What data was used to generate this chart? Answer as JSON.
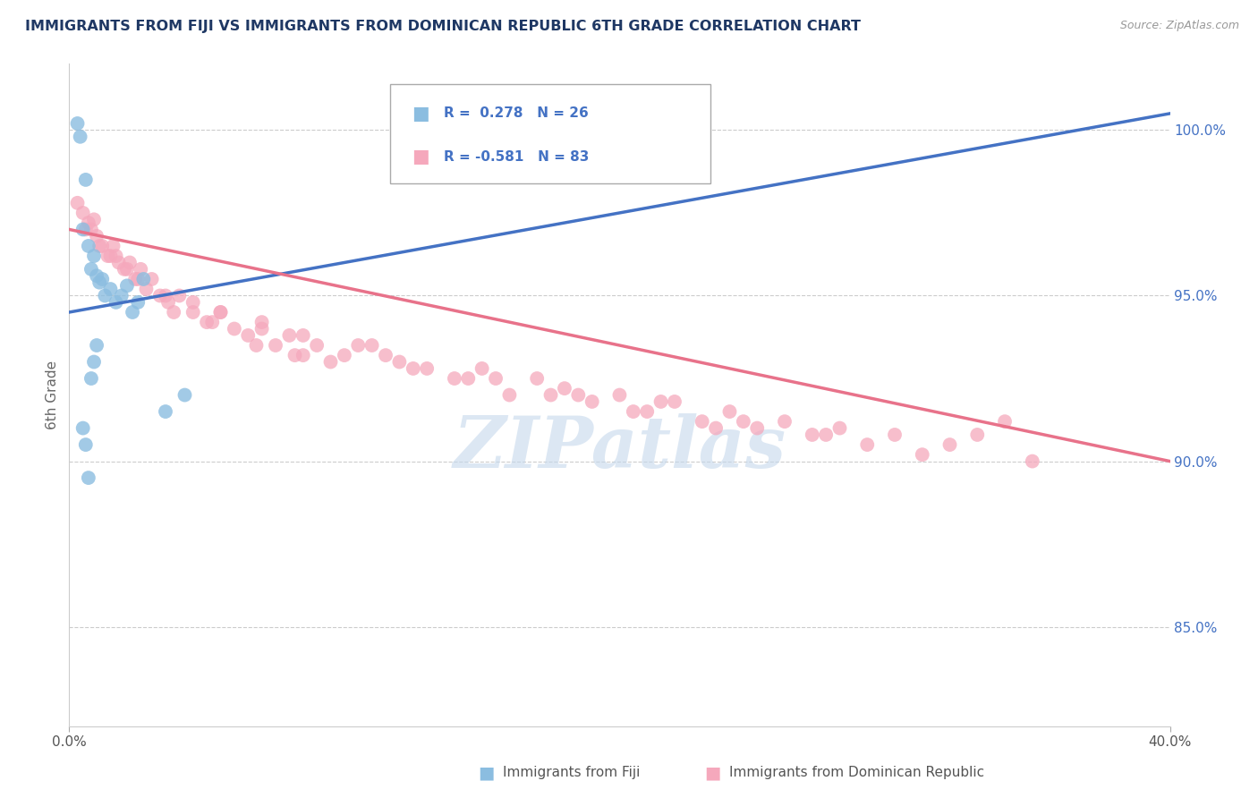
{
  "title": "IMMIGRANTS FROM FIJI VS IMMIGRANTS FROM DOMINICAN REPUBLIC 6TH GRADE CORRELATION CHART",
  "source": "Source: ZipAtlas.com",
  "ylabel": "6th Grade",
  "xlim": [
    0.0,
    40.0
  ],
  "ylim": [
    82.0,
    102.0
  ],
  "yticks_right": [
    85.0,
    90.0,
    95.0,
    100.0
  ],
  "legend_fiji_R": "0.278",
  "legend_fiji_N": "26",
  "legend_dr_R": "-0.581",
  "legend_dr_N": "83",
  "legend_label_fiji": "Immigrants from Fiji",
  "legend_label_dr": "Immigrants from Dominican Republic",
  "fiji_color": "#8BBDE0",
  "dr_color": "#F5A8BC",
  "fiji_line_color": "#4472C4",
  "dr_line_color": "#E8728A",
  "title_color": "#1F3864",
  "source_color": "#999999",
  "axis_label_color": "#666666",
  "watermark_color": "#C5D8EC",
  "watermark_text": "ZIPatlas",
  "fiji_scatter_x": [
    0.3,
    0.4,
    0.5,
    0.6,
    0.7,
    0.8,
    0.9,
    1.0,
    1.1,
    1.2,
    1.3,
    1.5,
    1.7,
    1.9,
    2.1,
    2.3,
    2.5,
    2.7,
    0.5,
    0.6,
    0.7,
    0.8,
    0.9,
    1.0,
    3.5,
    4.2
  ],
  "fiji_scatter_y": [
    100.2,
    99.8,
    97.0,
    98.5,
    96.5,
    95.8,
    96.2,
    95.6,
    95.4,
    95.5,
    95.0,
    95.2,
    94.8,
    95.0,
    95.3,
    94.5,
    94.8,
    95.5,
    91.0,
    90.5,
    89.5,
    92.5,
    93.0,
    93.5,
    91.5,
    92.0
  ],
  "dr_scatter_x": [
    0.3,
    0.5,
    0.7,
    0.8,
    0.9,
    1.0,
    1.2,
    1.4,
    1.6,
    1.8,
    2.0,
    2.2,
    2.4,
    2.6,
    2.8,
    3.0,
    3.3,
    3.6,
    4.0,
    4.5,
    5.0,
    5.5,
    6.0,
    6.5,
    7.0,
    7.5,
    8.0,
    8.5,
    9.0,
    9.5,
    10.0,
    11.0,
    12.0,
    13.0,
    14.0,
    15.0,
    16.0,
    17.0,
    18.0,
    19.0,
    20.0,
    21.0,
    22.0,
    23.0,
    24.0,
    25.0,
    26.0,
    27.0,
    28.0,
    29.0,
    30.0,
    31.0,
    32.0,
    33.0,
    34.0,
    35.0,
    1.5,
    2.5,
    3.5,
    4.5,
    5.5,
    7.0,
    8.5,
    10.5,
    12.5,
    15.5,
    18.5,
    21.5,
    24.5,
    27.5,
    0.6,
    1.1,
    1.7,
    2.1,
    3.8,
    5.2,
    6.8,
    8.2,
    11.5,
    14.5,
    17.5,
    20.5,
    23.5
  ],
  "dr_scatter_y": [
    97.8,
    97.5,
    97.2,
    97.0,
    97.3,
    96.8,
    96.5,
    96.2,
    96.5,
    96.0,
    95.8,
    96.0,
    95.5,
    95.8,
    95.2,
    95.5,
    95.0,
    94.8,
    95.0,
    94.5,
    94.2,
    94.5,
    94.0,
    93.8,
    94.2,
    93.5,
    93.8,
    93.2,
    93.5,
    93.0,
    93.2,
    93.5,
    93.0,
    92.8,
    92.5,
    92.8,
    92.0,
    92.5,
    92.2,
    91.8,
    92.0,
    91.5,
    91.8,
    91.2,
    91.5,
    91.0,
    91.2,
    90.8,
    91.0,
    90.5,
    90.8,
    90.2,
    90.5,
    90.8,
    91.2,
    90.0,
    96.2,
    95.5,
    95.0,
    94.8,
    94.5,
    94.0,
    93.8,
    93.5,
    92.8,
    92.5,
    92.0,
    91.8,
    91.2,
    90.8,
    97.0,
    96.5,
    96.2,
    95.8,
    94.5,
    94.2,
    93.5,
    93.2,
    93.2,
    92.5,
    92.0,
    91.5,
    91.0
  ],
  "fiji_trendline_x": [
    0.0,
    40.0
  ],
  "fiji_trendline_y": [
    94.5,
    100.5
  ],
  "dr_trendline_x": [
    0.0,
    40.0
  ],
  "dr_trendline_y": [
    97.0,
    90.0
  ]
}
